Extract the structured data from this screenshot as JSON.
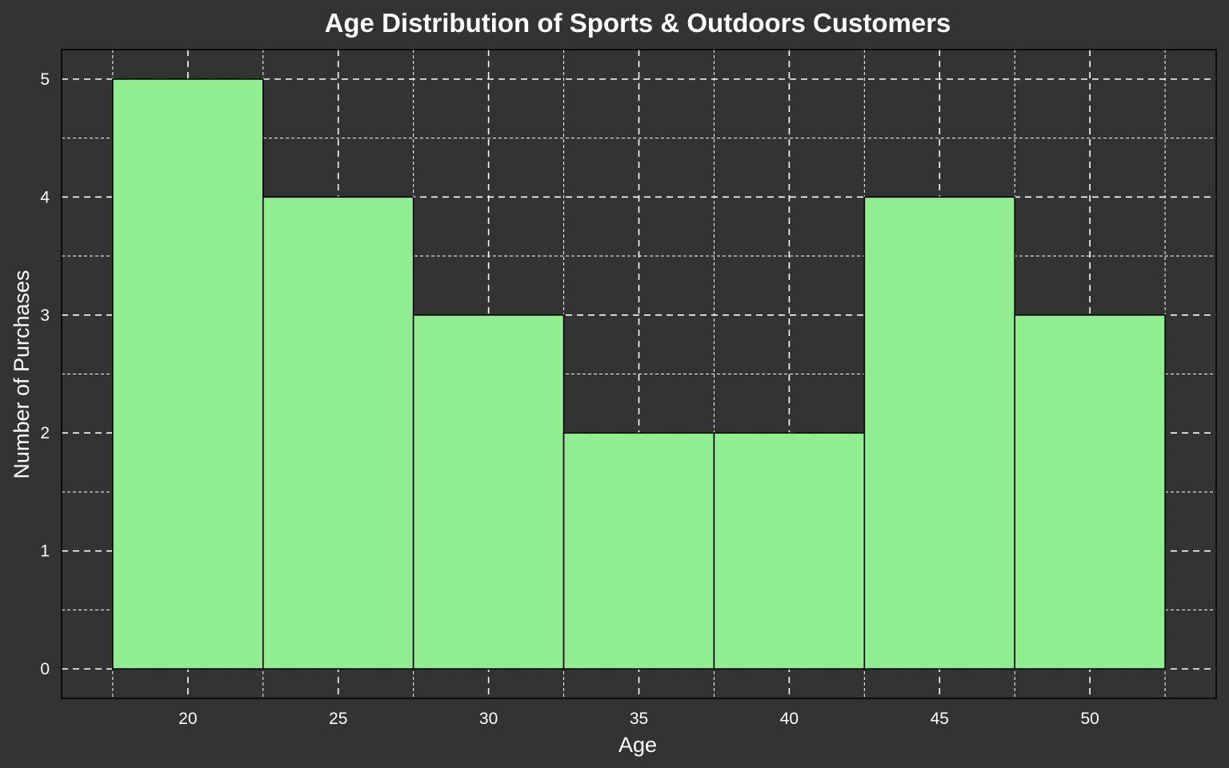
{
  "chart_data": {
    "type": "bar",
    "title": "Age Distribution of Sports & Outdoors Customers",
    "xlabel": "Age",
    "ylabel": "Number of Purchases",
    "x_ticks": [
      20,
      25,
      30,
      35,
      40,
      45,
      50
    ],
    "y_ticks": [
      0,
      1,
      2,
      3,
      4,
      5
    ],
    "bins": [
      {
        "center": 20,
        "start": 17.5,
        "end": 22.5,
        "count": 5
      },
      {
        "center": 25,
        "start": 22.5,
        "end": 27.5,
        "count": 4
      },
      {
        "center": 30,
        "start": 27.5,
        "end": 32.5,
        "count": 3
      },
      {
        "center": 35,
        "start": 32.5,
        "end": 37.5,
        "count": 2
      },
      {
        "center": 40,
        "start": 37.5,
        "end": 42.5,
        "count": 2
      },
      {
        "center": 45,
        "start": 42.5,
        "end": 47.5,
        "count": 4
      },
      {
        "center": 50,
        "start": 47.5,
        "end": 52.5,
        "count": 3
      }
    ],
    "xlim": [
      15.8,
      54.2
    ],
    "ylim": [
      -0.25,
      5.25
    ],
    "grid": true,
    "colors": {
      "background": "#333333",
      "bar_fill": "#90EE90",
      "bar_edge": "#000000",
      "grid": "#ffffff",
      "text": "#ffffff"
    }
  }
}
